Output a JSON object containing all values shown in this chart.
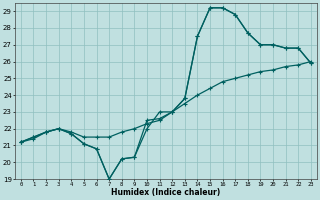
{
  "xlabel": "Humidex (Indice chaleur)",
  "xlim": [
    -0.5,
    23.5
  ],
  "ylim": [
    19,
    29.5
  ],
  "yticks": [
    19,
    20,
    21,
    22,
    23,
    24,
    25,
    26,
    27,
    28,
    29
  ],
  "xticks": [
    0,
    1,
    2,
    3,
    4,
    5,
    6,
    7,
    8,
    9,
    10,
    11,
    12,
    13,
    14,
    15,
    16,
    17,
    18,
    19,
    20,
    21,
    22,
    23
  ],
  "bg_color": "#c0e0e0",
  "grid_color": "#90c0c0",
  "line_color": "#006060",
  "line1_x": [
    0,
    1,
    2,
    3,
    4,
    5,
    6,
    7,
    8,
    9,
    10,
    11,
    12,
    13,
    14,
    15,
    16,
    17,
    18,
    19,
    20,
    21,
    22,
    23
  ],
  "line1_y": [
    21.2,
    21.5,
    21.8,
    22.0,
    21.7,
    21.1,
    20.8,
    19.0,
    20.2,
    20.3,
    22.5,
    22.6,
    23.0,
    23.8,
    27.5,
    29.2,
    29.2,
    28.8,
    27.7,
    27.0,
    27.0,
    26.8,
    26.8,
    25.9
  ],
  "line2_x": [
    0,
    1,
    2,
    3,
    4,
    5,
    6,
    7,
    8,
    9,
    10,
    11,
    12,
    13,
    14,
    15,
    16,
    17,
    18,
    19,
    20,
    21,
    22,
    23
  ],
  "line2_y": [
    21.2,
    21.4,
    21.8,
    22.0,
    21.8,
    21.5,
    21.5,
    21.5,
    21.8,
    22.0,
    22.3,
    22.5,
    23.0,
    23.5,
    24.0,
    24.4,
    24.8,
    25.0,
    25.2,
    25.4,
    25.5,
    25.7,
    25.8,
    26.0
  ],
  "line3_x": [
    0,
    1,
    2,
    3,
    4,
    5,
    6,
    7,
    8,
    9,
    10,
    11,
    12,
    13,
    14,
    15,
    16,
    17,
    18,
    19,
    20,
    21,
    22,
    23
  ],
  "line3_y": [
    21.2,
    21.5,
    21.8,
    22.0,
    21.7,
    21.1,
    20.8,
    19.0,
    20.2,
    20.3,
    22.0,
    23.0,
    23.0,
    23.8,
    27.5,
    29.2,
    29.2,
    28.8,
    27.7,
    27.0,
    27.0,
    26.8,
    26.8,
    25.9
  ]
}
